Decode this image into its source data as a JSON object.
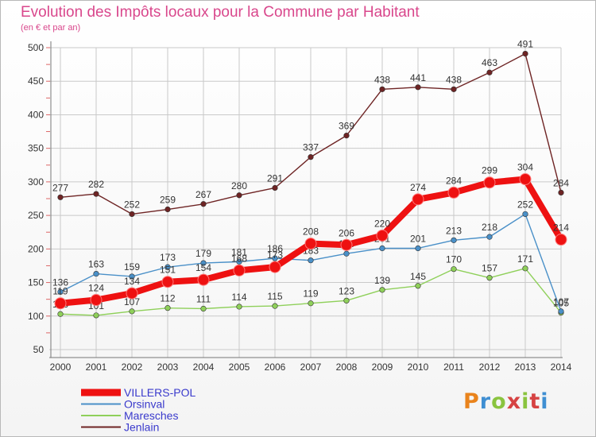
{
  "title": "Evolution des Impôts locaux pour la Commune par Habitant",
  "subtitle": "(en € et par an)",
  "logo": {
    "text": "Proxiti",
    "colors": [
      "#e9831c",
      "#3f8fd2",
      "#8ac43f",
      "#d64343"
    ]
  },
  "chart_data": {
    "type": "line",
    "x": [
      "2000",
      "2001",
      "2002",
      "2003",
      "2004",
      "2005",
      "2006",
      "2007",
      "2008",
      "2009",
      "2010",
      "2011",
      "2012",
      "2013",
      "2014"
    ],
    "yticks": [
      50,
      100,
      150,
      200,
      250,
      300,
      350,
      400,
      450,
      500
    ],
    "ylim": [
      50,
      500
    ],
    "grid": true,
    "legend_position": "bottom-left",
    "series": [
      {
        "name": "VILLERS-POL",
        "color": "#ee1111",
        "values": [
          119,
          124,
          134,
          151,
          154,
          168,
          173,
          208,
          206,
          220,
          274,
          284,
          299,
          304,
          214
        ]
      },
      {
        "name": "Orsinval",
        "color": "#4a90c8",
        "values": [
          136,
          163,
          159,
          173,
          179,
          181,
          186,
          183,
          193,
          201,
          201,
          213,
          218,
          252,
          107
        ]
      },
      {
        "name": "Maresches",
        "color": "#8fd05a",
        "values": [
          103,
          101,
          107,
          112,
          111,
          114,
          115,
          119,
          123,
          139,
          145,
          170,
          157,
          171,
          105
        ]
      },
      {
        "name": "Jenlain",
        "color": "#6e2424",
        "values": [
          277,
          282,
          252,
          259,
          267,
          280,
          291,
          337,
          369,
          438,
          441,
          438,
          463,
          491,
          284
        ]
      }
    ]
  }
}
